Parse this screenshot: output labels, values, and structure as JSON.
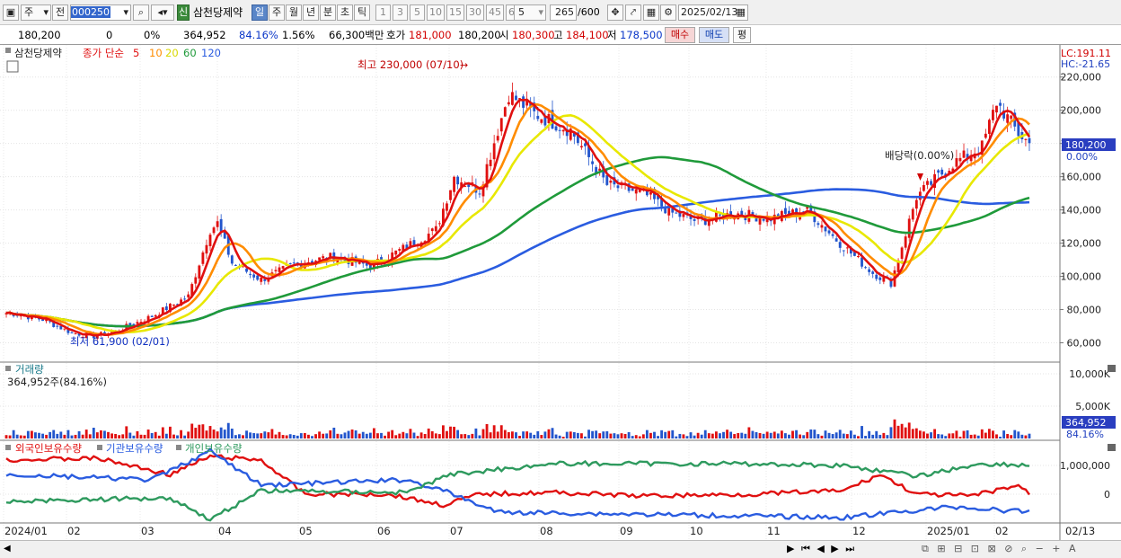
{
  "toolbar": {
    "market": "주",
    "prefix": "전",
    "code": "000250",
    "badge": "신",
    "name": "삼천당제약",
    "periods": [
      "일",
      "주",
      "월",
      "년",
      "분",
      "초",
      "틱"
    ],
    "intervals": [
      "1",
      "3",
      "5",
      "10",
      "15",
      "30",
      "45",
      "60"
    ],
    "interval_value": "5",
    "count": "265",
    "count_max": "/600",
    "date": "2025/02/13"
  },
  "quote": {
    "price": "180,200",
    "change": "0",
    "change_pct": "0%",
    "volume": "364,952",
    "vol_ratio": "84.16%",
    "turnover": "1.56%",
    "amount": "66,300백만",
    "ask_label": "호가",
    "ask": "181,000",
    "bid": "180,200",
    "open_label": "시",
    "open": "180,300",
    "high_label": "고",
    "high": "184,100",
    "low_label": "저",
    "low": "178,500",
    "buy_btn": "매수",
    "sell_btn": "매도",
    "eval_btn": "평"
  },
  "colors": {
    "up": "#e01010",
    "down": "#2255cc",
    "ma5": "#e01010",
    "ma10": "#ff8c00",
    "ma20": "#e8e800",
    "ma60": "#1f9a3a",
    "ma120": "#2a5ce0",
    "foreign": "#e01010",
    "inst": "#2a5ce0",
    "indiv": "#2e9a5e"
  },
  "chart_data": [
    {
      "type": "candlestick",
      "legend": {
        "name": "삼천당제약",
        "price_type": "종가 단순",
        "periods": [
          "5",
          "10",
          "20",
          "60",
          "120"
        ]
      },
      "y_ticks": [
        "220,000",
        "200,000",
        "180,000",
        "160,000",
        "140,000",
        "120,000",
        "100,000",
        "80,000",
        "60,000"
      ],
      "ylim": [
        50000,
        235000
      ],
      "x_labels": [
        "2024/01",
        "02",
        "03",
        "04",
        "05",
        "06",
        "07",
        "08",
        "09",
        "10",
        "11",
        "12",
        "2025/01",
        "02",
        "02/13"
      ],
      "annotations": {
        "high": "최고 230,000 (07/10)",
        "low": "최저 61,900 (02/01)",
        "dividend": "배당락(0.00%)",
        "lc": "LC:191.11",
        "hc": "HC:-21.65",
        "last_price": "180,200",
        "last_pct": "0.00%"
      },
      "close_path": [
        [
          1,
          78000
        ],
        [
          10,
          74000
        ],
        [
          18,
          66000
        ],
        [
          24,
          64000
        ],
        [
          30,
          67000
        ],
        [
          40,
          76000
        ],
        [
          45,
          82000
        ],
        [
          50,
          88000
        ],
        [
          56,
          128000
        ],
        [
          58,
          132000
        ],
        [
          62,
          108000
        ],
        [
          70,
          98000
        ],
        [
          80,
          108000
        ],
        [
          90,
          112000
        ],
        [
          100,
          106000
        ],
        [
          110,
          118000
        ],
        [
          118,
          128000
        ],
        [
          123,
          160000
        ],
        [
          130,
          152000
        ],
        [
          138,
          210000
        ],
        [
          145,
          198000
        ],
        [
          155,
          188000
        ],
        [
          165,
          155000
        ],
        [
          175,
          150000
        ],
        [
          183,
          138000
        ],
        [
          190,
          133000
        ],
        [
          200,
          138000
        ],
        [
          210,
          135000
        ],
        [
          220,
          140000
        ],
        [
          228,
          122000
        ],
        [
          238,
          102000
        ],
        [
          243,
          96000
        ],
        [
          250,
          148000
        ],
        [
          260,
          168000
        ],
        [
          268,
          178000
        ],
        [
          272,
          205000
        ],
        [
          278,
          186000
        ],
        [
          281,
          180200
        ]
      ],
      "x_range": [
        0,
        290
      ]
    },
    {
      "type": "bar",
      "title": "거래량",
      "current": "364,952주(84.16%)",
      "y_ticks": [
        "10,000K",
        "5,000K"
      ],
      "last_value": "364,952",
      "last_pct": "84.16%"
    },
    {
      "type": "line",
      "legend": [
        "외국인보유수량",
        "기관보유수량",
        "개인보유수량"
      ],
      "y_ticks": [
        "1,000,000",
        "0"
      ]
    }
  ]
}
